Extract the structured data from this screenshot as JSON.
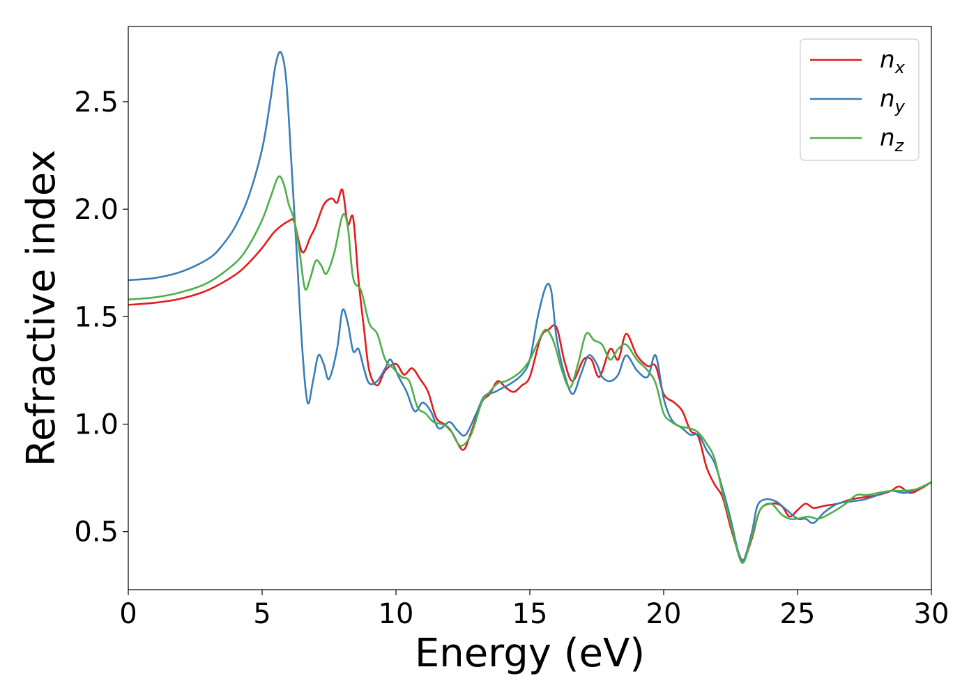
{
  "chart_data": {
    "type": "line",
    "title": "",
    "xlabel": "Energy (eV)",
    "ylabel": "Refractive index",
    "xlim": [
      0,
      30
    ],
    "ylim": [
      0.23,
      2.85
    ],
    "xticks": [
      0,
      5,
      10,
      15,
      20,
      25,
      30
    ],
    "xtick_labels": [
      "0",
      "5",
      "10",
      "15",
      "20",
      "25",
      "30"
    ],
    "yticks": [
      0.5,
      1.0,
      1.5,
      2.0,
      2.5
    ],
    "ytick_labels": [
      "0.5",
      "1.0",
      "1.5",
      "2.0",
      "2.5"
    ],
    "grid": false,
    "legend_position": "top-right",
    "series": [
      {
        "name": "n",
        "sub": "x",
        "color": "#e41a1c",
        "points": [
          [
            0,
            1.555
          ],
          [
            1,
            1.565
          ],
          [
            2,
            1.585
          ],
          [
            3,
            1.625
          ],
          [
            4,
            1.695
          ],
          [
            4.5,
            1.75
          ],
          [
            5,
            1.82
          ],
          [
            5.5,
            1.9
          ],
          [
            6,
            1.945
          ],
          [
            6.2,
            1.94
          ],
          [
            6.5,
            1.8
          ],
          [
            6.8,
            1.87
          ],
          [
            7,
            1.92
          ],
          [
            7.3,
            2.02
          ],
          [
            7.6,
            2.05
          ],
          [
            7.8,
            2.03
          ],
          [
            8,
            2.09
          ],
          [
            8.2,
            1.93
          ],
          [
            8.4,
            1.96
          ],
          [
            8.6,
            1.67
          ],
          [
            8.8,
            1.45
          ],
          [
            9,
            1.25
          ],
          [
            9.3,
            1.18
          ],
          [
            9.6,
            1.25
          ],
          [
            10,
            1.28
          ],
          [
            10.3,
            1.23
          ],
          [
            10.6,
            1.26
          ],
          [
            10.9,
            1.21
          ],
          [
            11.2,
            1.15
          ],
          [
            11.5,
            1.03
          ],
          [
            11.8,
            1.0
          ],
          [
            12.1,
            0.96
          ],
          [
            12.5,
            0.88
          ],
          [
            12.8,
            0.96
          ],
          [
            13.2,
            1.1
          ],
          [
            13.5,
            1.14
          ],
          [
            13.8,
            1.2
          ],
          [
            14.1,
            1.17
          ],
          [
            14.4,
            1.15
          ],
          [
            14.7,
            1.18
          ],
          [
            15,
            1.22
          ],
          [
            15.4,
            1.4
          ],
          [
            15.7,
            1.44
          ],
          [
            16,
            1.45
          ],
          [
            16.3,
            1.29
          ],
          [
            16.6,
            1.2
          ],
          [
            17,
            1.3
          ],
          [
            17.3,
            1.3
          ],
          [
            17.6,
            1.22
          ],
          [
            18,
            1.35
          ],
          [
            18.3,
            1.3
          ],
          [
            18.6,
            1.42
          ],
          [
            19,
            1.32
          ],
          [
            19.4,
            1.27
          ],
          [
            19.7,
            1.27
          ],
          [
            20,
            1.14
          ],
          [
            20.4,
            1.1
          ],
          [
            20.7,
            1.06
          ],
          [
            21,
            0.97
          ],
          [
            21.3,
            0.94
          ],
          [
            21.6,
            0.8
          ],
          [
            21.9,
            0.72
          ],
          [
            22.2,
            0.66
          ],
          [
            22.5,
            0.52
          ],
          [
            22.8,
            0.4
          ],
          [
            23,
            0.37
          ],
          [
            23.3,
            0.47
          ],
          [
            23.6,
            0.6
          ],
          [
            24,
            0.63
          ],
          [
            24.4,
            0.62
          ],
          [
            24.7,
            0.57
          ],
          [
            25,
            0.6
          ],
          [
            25.3,
            0.63
          ],
          [
            25.6,
            0.61
          ],
          [
            26,
            0.62
          ],
          [
            26.5,
            0.63
          ],
          [
            27,
            0.65
          ],
          [
            27.5,
            0.66
          ],
          [
            28,
            0.67
          ],
          [
            28.5,
            0.69
          ],
          [
            28.8,
            0.71
          ],
          [
            29.2,
            0.68
          ],
          [
            29.6,
            0.7
          ],
          [
            30,
            0.73
          ]
        ]
      },
      {
        "name": "n",
        "sub": "y",
        "color": "#377eb8",
        "points": [
          [
            0,
            1.67
          ],
          [
            1,
            1.68
          ],
          [
            2,
            1.71
          ],
          [
            3,
            1.77
          ],
          [
            3.5,
            1.83
          ],
          [
            4,
            1.92
          ],
          [
            4.5,
            2.06
          ],
          [
            5,
            2.28
          ],
          [
            5.3,
            2.5
          ],
          [
            5.5,
            2.67
          ],
          [
            5.7,
            2.73
          ],
          [
            5.9,
            2.6
          ],
          [
            6.1,
            2.2
          ],
          [
            6.3,
            1.78
          ],
          [
            6.5,
            1.35
          ],
          [
            6.7,
            1.1
          ],
          [
            6.9,
            1.2
          ],
          [
            7.1,
            1.32
          ],
          [
            7.3,
            1.28
          ],
          [
            7.5,
            1.21
          ],
          [
            7.8,
            1.35
          ],
          [
            8,
            1.53
          ],
          [
            8.2,
            1.47
          ],
          [
            8.4,
            1.34
          ],
          [
            8.6,
            1.35
          ],
          [
            8.8,
            1.26
          ],
          [
            9,
            1.19
          ],
          [
            9.3,
            1.2
          ],
          [
            9.6,
            1.26
          ],
          [
            9.8,
            1.3
          ],
          [
            10.1,
            1.22
          ],
          [
            10.4,
            1.15
          ],
          [
            10.7,
            1.06
          ],
          [
            11,
            1.1
          ],
          [
            11.3,
            1.06
          ],
          [
            11.6,
            0.98
          ],
          [
            12,
            1.01
          ],
          [
            12.3,
            0.97
          ],
          [
            12.6,
            0.95
          ],
          [
            13,
            1.05
          ],
          [
            13.3,
            1.13
          ],
          [
            13.7,
            1.15
          ],
          [
            14,
            1.17
          ],
          [
            14.3,
            1.19
          ],
          [
            14.7,
            1.23
          ],
          [
            15,
            1.3
          ],
          [
            15.3,
            1.5
          ],
          [
            15.6,
            1.64
          ],
          [
            15.8,
            1.62
          ],
          [
            16,
            1.4
          ],
          [
            16.3,
            1.23
          ],
          [
            16.6,
            1.14
          ],
          [
            16.9,
            1.23
          ],
          [
            17.2,
            1.32
          ],
          [
            17.5,
            1.28
          ],
          [
            17.7,
            1.22
          ],
          [
            18,
            1.2
          ],
          [
            18.3,
            1.23
          ],
          [
            18.6,
            1.32
          ],
          [
            19,
            1.25
          ],
          [
            19.4,
            1.22
          ],
          [
            19.7,
            1.32
          ],
          [
            20,
            1.12
          ],
          [
            20.3,
            1.02
          ],
          [
            20.7,
            0.98
          ],
          [
            21,
            0.95
          ],
          [
            21.3,
            0.95
          ],
          [
            21.6,
            0.88
          ],
          [
            21.9,
            0.82
          ],
          [
            22.2,
            0.7
          ],
          [
            22.5,
            0.56
          ],
          [
            22.8,
            0.4
          ],
          [
            23,
            0.37
          ],
          [
            23.3,
            0.5
          ],
          [
            23.5,
            0.62
          ],
          [
            23.8,
            0.65
          ],
          [
            24.2,
            0.64
          ],
          [
            24.6,
            0.6
          ],
          [
            25,
            0.56
          ],
          [
            25.3,
            0.56
          ],
          [
            25.6,
            0.54
          ],
          [
            26,
            0.59
          ],
          [
            26.5,
            0.63
          ],
          [
            27,
            0.64
          ],
          [
            27.5,
            0.65
          ],
          [
            28,
            0.67
          ],
          [
            28.5,
            0.69
          ],
          [
            29,
            0.68
          ],
          [
            29.5,
            0.7
          ],
          [
            30,
            0.73
          ]
        ]
      },
      {
        "name": "n",
        "sub": "z",
        "color": "#4daf4a",
        "points": [
          [
            0,
            1.58
          ],
          [
            1,
            1.59
          ],
          [
            2,
            1.615
          ],
          [
            3,
            1.66
          ],
          [
            4,
            1.75
          ],
          [
            4.5,
            1.83
          ],
          [
            5,
            1.95
          ],
          [
            5.3,
            2.05
          ],
          [
            5.6,
            2.15
          ],
          [
            5.8,
            2.12
          ],
          [
            6,
            2.02
          ],
          [
            6.2,
            1.95
          ],
          [
            6.4,
            1.8
          ],
          [
            6.6,
            1.63
          ],
          [
            6.8,
            1.68
          ],
          [
            7,
            1.76
          ],
          [
            7.2,
            1.74
          ],
          [
            7.4,
            1.7
          ],
          [
            7.7,
            1.8
          ],
          [
            8,
            1.97
          ],
          [
            8.2,
            1.92
          ],
          [
            8.4,
            1.68
          ],
          [
            8.7,
            1.62
          ],
          [
            9,
            1.47
          ],
          [
            9.3,
            1.42
          ],
          [
            9.6,
            1.3
          ],
          [
            9.9,
            1.26
          ],
          [
            10.2,
            1.22
          ],
          [
            10.5,
            1.2
          ],
          [
            10.8,
            1.08
          ],
          [
            11.1,
            1.05
          ],
          [
            11.4,
            1.01
          ],
          [
            11.7,
            1.0
          ],
          [
            12,
            0.98
          ],
          [
            12.4,
            0.9
          ],
          [
            12.8,
            0.95
          ],
          [
            13.2,
            1.1
          ],
          [
            13.5,
            1.15
          ],
          [
            13.8,
            1.19
          ],
          [
            14.1,
            1.2
          ],
          [
            14.4,
            1.22
          ],
          [
            14.7,
            1.25
          ],
          [
            15,
            1.3
          ],
          [
            15.3,
            1.38
          ],
          [
            15.6,
            1.44
          ],
          [
            15.9,
            1.38
          ],
          [
            16.2,
            1.25
          ],
          [
            16.5,
            1.17
          ],
          [
            16.8,
            1.28
          ],
          [
            17.1,
            1.42
          ],
          [
            17.4,
            1.39
          ],
          [
            17.7,
            1.37
          ],
          [
            18,
            1.3
          ],
          [
            18.3,
            1.35
          ],
          [
            18.6,
            1.37
          ],
          [
            19,
            1.3
          ],
          [
            19.4,
            1.25
          ],
          [
            19.7,
            1.19
          ],
          [
            20,
            1.05
          ],
          [
            20.3,
            1.01
          ],
          [
            20.6,
            0.99
          ],
          [
            21,
            0.98
          ],
          [
            21.3,
            0.96
          ],
          [
            21.6,
            0.91
          ],
          [
            21.9,
            0.84
          ],
          [
            22.2,
            0.68
          ],
          [
            22.5,
            0.54
          ],
          [
            22.8,
            0.39
          ],
          [
            23,
            0.36
          ],
          [
            23.3,
            0.48
          ],
          [
            23.6,
            0.6
          ],
          [
            24,
            0.63
          ],
          [
            24.4,
            0.58
          ],
          [
            24.7,
            0.56
          ],
          [
            25,
            0.56
          ],
          [
            25.4,
            0.57
          ],
          [
            25.8,
            0.56
          ],
          [
            26.3,
            0.59
          ],
          [
            26.8,
            0.63
          ],
          [
            27.2,
            0.67
          ],
          [
            27.6,
            0.67
          ],
          [
            28,
            0.68
          ],
          [
            28.5,
            0.69
          ],
          [
            29,
            0.69
          ],
          [
            29.5,
            0.7
          ],
          [
            30,
            0.73
          ]
        ]
      }
    ]
  }
}
